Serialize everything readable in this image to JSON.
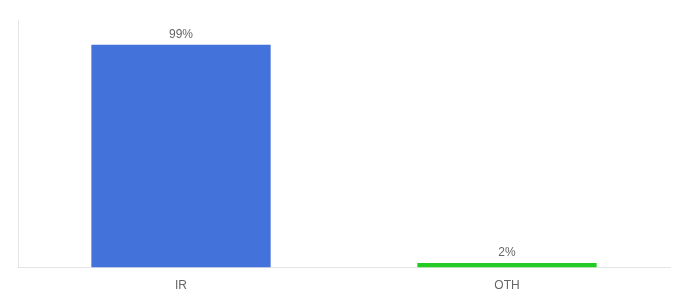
{
  "chart_data": {
    "type": "bar",
    "categories": [
      "IR",
      "OTH"
    ],
    "values": [
      99,
      2
    ],
    "colors": [
      "#4472db",
      "#22cc22"
    ],
    "value_labels": [
      "99%",
      "2%"
    ],
    "data_labels": true,
    "ylim": [
      0,
      110
    ],
    "grid": false,
    "tick_labels": "x"
  }
}
